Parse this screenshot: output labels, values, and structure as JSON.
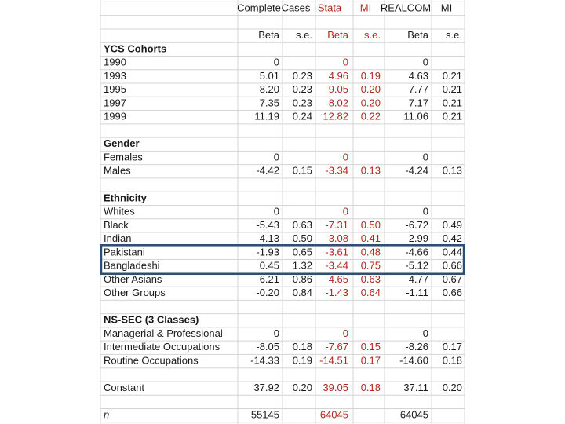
{
  "header": {
    "methods": [
      "Complete",
      "Cases",
      "Stata",
      "MI",
      "REALCOM",
      "MI"
    ],
    "columns": [
      "Beta",
      "s.e.",
      "Beta",
      "s.e.",
      "Beta",
      "s.e."
    ]
  },
  "sections": [
    {
      "title": "YCS Cohorts",
      "rows": [
        {
          "label": "1990",
          "values": [
            "0",
            null,
            "0",
            null,
            "0",
            null
          ]
        },
        {
          "label": "1993",
          "values": [
            "5.01",
            "0.23",
            "4.96",
            "0.19",
            "4.63",
            "0.21"
          ]
        },
        {
          "label": "1995",
          "values": [
            "8.20",
            "0.23",
            "9.05",
            "0.20",
            "7.77",
            "0.21"
          ]
        },
        {
          "label": "1997",
          "values": [
            "7.35",
            "0.23",
            "8.02",
            "0.20",
            "7.17",
            "0.21"
          ]
        },
        {
          "label": "1999",
          "values": [
            "11.19",
            "0.24",
            "12.82",
            "0.22",
            "11.06",
            "0.21"
          ]
        }
      ]
    },
    {
      "title": "Gender",
      "rows": [
        {
          "label": "Females",
          "values": [
            "0",
            null,
            "0",
            null,
            "0",
            null
          ]
        },
        {
          "label": "Males",
          "values": [
            "-4.42",
            "0.15",
            "-3.34",
            "0.13",
            "-4.24",
            "0.13"
          ]
        }
      ]
    },
    {
      "title": "Ethnicity",
      "rows": [
        {
          "label": "Whites",
          "values": [
            "0",
            null,
            "0",
            null,
            "0",
            null
          ]
        },
        {
          "label": "Black",
          "values": [
            "-5.43",
            "0.63",
            "-7.31",
            "0.50",
            "-6.72",
            "0.49"
          ]
        },
        {
          "label": "Indian",
          "values": [
            "4.13",
            "0.50",
            "3.08",
            "0.41",
            "2.99",
            "0.42"
          ]
        },
        {
          "label": "Pakistani",
          "values": [
            "-1.93",
            "0.65",
            "-3.61",
            "0.48",
            "-4.66",
            "0.44"
          ]
        },
        {
          "label": "Bangladeshi",
          "values": [
            "0.45",
            "1.32",
            "-3.44",
            "0.75",
            "-5.12",
            "0.66"
          ]
        },
        {
          "label": "Other Asians",
          "values": [
            "6.21",
            "0.86",
            "4.65",
            "0.63",
            "4.77",
            "0.67"
          ]
        },
        {
          "label": "Other Groups",
          "values": [
            "-0.20",
            "0.84",
            "-1.43",
            "0.64",
            "-1.11",
            "0.66"
          ]
        }
      ]
    },
    {
      "title": "NS-SEC (3 Classes)",
      "rows": [
        {
          "label": "Managerial & Professional",
          "values": [
            "0",
            null,
            "0",
            null,
            "0",
            null
          ]
        },
        {
          "label": "Intermediate Occupations",
          "values": [
            "-8.05",
            "0.18",
            "-7.67",
            "0.15",
            "-8.26",
            "0.17"
          ]
        },
        {
          "label": "Routine Occupations",
          "values": [
            "-14.33",
            "0.19",
            "-14.51",
            "0.17",
            "-14.60",
            "0.18"
          ]
        }
      ]
    },
    {
      "rows": [
        {
          "label": "Constant",
          "values": [
            "37.92",
            "0.20",
            "39.05",
            "0.18",
            "37.11",
            "0.20"
          ]
        }
      ]
    },
    {
      "rows": [
        {
          "label": "n",
          "values": [
            "55145",
            null,
            "64045",
            null,
            "64045",
            null
          ]
        }
      ]
    }
  ]
}
